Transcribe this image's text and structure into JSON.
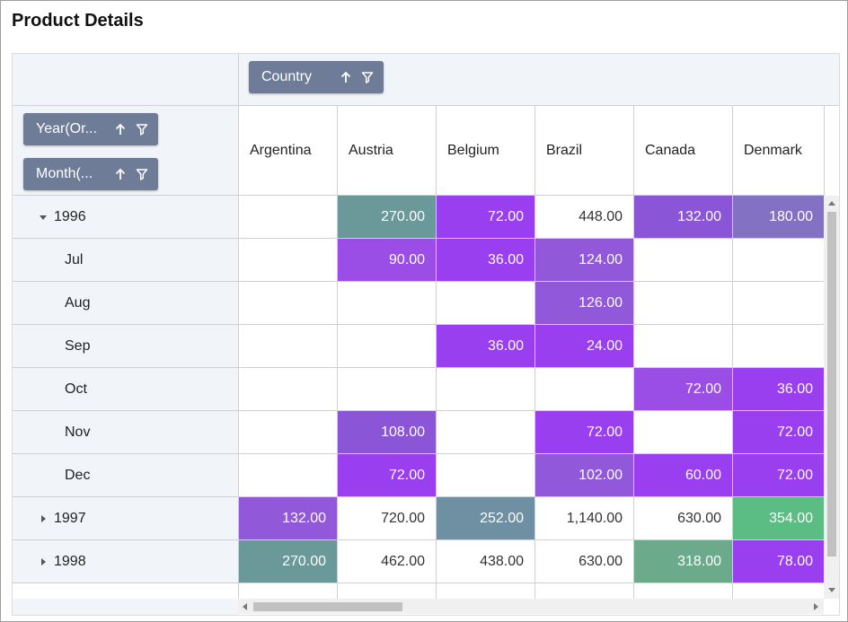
{
  "title": "Product Details",
  "column_field": {
    "label": "Country"
  },
  "row_fields": [
    {
      "label": "Year(Or..."
    },
    {
      "label": "Month(..."
    }
  ],
  "columns": [
    "Argentina",
    "Austria",
    "Belgium",
    "Brazil",
    "Canada",
    "Denmark"
  ],
  "rows": [
    {
      "label": "1996",
      "level": 0,
      "toggle": "expanded",
      "cells": [
        "",
        "270.00",
        "72.00",
        "448.00",
        "132.00",
        "180.00"
      ]
    },
    {
      "label": "Jul",
      "level": 1,
      "toggle": "",
      "cells": [
        "",
        "90.00",
        "36.00",
        "124.00",
        "",
        ""
      ]
    },
    {
      "label": "Aug",
      "level": 1,
      "toggle": "",
      "cells": [
        "",
        "",
        "",
        "126.00",
        "",
        ""
      ]
    },
    {
      "label": "Sep",
      "level": 1,
      "toggle": "",
      "cells": [
        "",
        "",
        "36.00",
        "24.00",
        "",
        ""
      ]
    },
    {
      "label": "Oct",
      "level": 1,
      "toggle": "",
      "cells": [
        "",
        "",
        "",
        "",
        "72.00",
        "36.00"
      ]
    },
    {
      "label": "Nov",
      "level": 1,
      "toggle": "",
      "cells": [
        "",
        "108.00",
        "",
        "72.00",
        "",
        "72.00"
      ]
    },
    {
      "label": "Dec",
      "level": 1,
      "toggle": "",
      "cells": [
        "",
        "72.00",
        "",
        "102.00",
        "60.00",
        "72.00"
      ]
    },
    {
      "label": "1997",
      "level": 0,
      "toggle": "collapsed",
      "cells": [
        "132.00",
        "720.00",
        "252.00",
        "1,140.00",
        "630.00",
        "354.00"
      ]
    },
    {
      "label": "1998",
      "level": 0,
      "toggle": "collapsed",
      "cells": [
        "270.00",
        "462.00",
        "438.00",
        "630.00",
        "318.00",
        "78.00"
      ]
    }
  ],
  "cell_colors": [
    [
      "",
      "#6b9898",
      "#9a3ff0",
      "",
      "#8a55d6",
      "#8372c4"
    ],
    [
      "",
      "#9a4ee6",
      "#9a3ff0",
      "#9258da",
      "",
      ""
    ],
    [
      "",
      "",
      "",
      "#9258da",
      "",
      ""
    ],
    [
      "",
      "",
      "#9a3ff0",
      "#9a3ff0",
      "",
      ""
    ],
    [
      "",
      "",
      "",
      "",
      "#9a4ee6",
      "#9a3ff0"
    ],
    [
      "",
      "#8a55d6",
      "",
      "#9a3ff0",
      "",
      "#9a3ff0"
    ],
    [
      "",
      "#9a3ff0",
      "",
      "#9258da",
      "#9a3ff0",
      "#9a3ff0"
    ],
    [
      "#9258da",
      "",
      "#6f8fa3",
      "",
      "",
      "#5cbd84"
    ],
    [
      "#6b9898",
      "",
      "",
      "",
      "#6bab8c",
      "#9a3ff0"
    ]
  ],
  "colors": {
    "chip": "#6e7c97",
    "header_bg": "#f1f4f8",
    "grid": "#d0d0d0"
  }
}
